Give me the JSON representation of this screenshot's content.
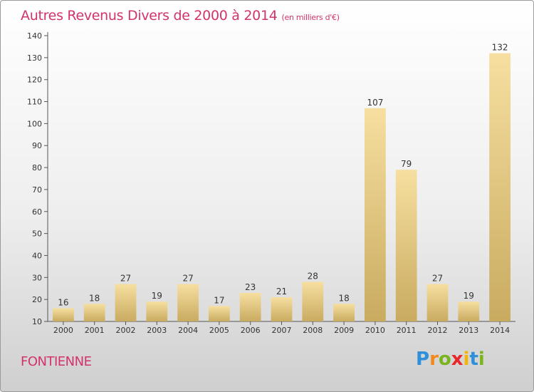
{
  "title": "Autres Revenus Divers de 2000 à 2014",
  "unit": "(en milliers d'€)",
  "place": "FONTIENNE",
  "logo": {
    "letters": [
      "P",
      "r",
      "o",
      "x",
      "i",
      "t",
      "i"
    ],
    "colors": [
      "#2f8fd8",
      "#f08a1c",
      "#7ab51d",
      "#e8262b",
      "#f4b400",
      "#2f8fd8",
      "#7ab51d"
    ]
  },
  "chart_data": {
    "type": "bar",
    "categories": [
      "2000",
      "2001",
      "2002",
      "2003",
      "2004",
      "2005",
      "2006",
      "2007",
      "2008",
      "2009",
      "2010",
      "2011",
      "2012",
      "2013",
      "2014"
    ],
    "values": [
      16,
      18,
      27,
      19,
      27,
      17,
      23,
      21,
      28,
      18,
      107,
      79,
      27,
      19,
      132
    ],
    "yticks": [
      10,
      20,
      30,
      40,
      50,
      60,
      70,
      80,
      90,
      100,
      110,
      120,
      130,
      140
    ],
    "ylim": [
      10,
      140
    ],
    "grid": false,
    "bar_color_light": "#f6dfa0",
    "bar_color_dark": "#c9ab60"
  }
}
